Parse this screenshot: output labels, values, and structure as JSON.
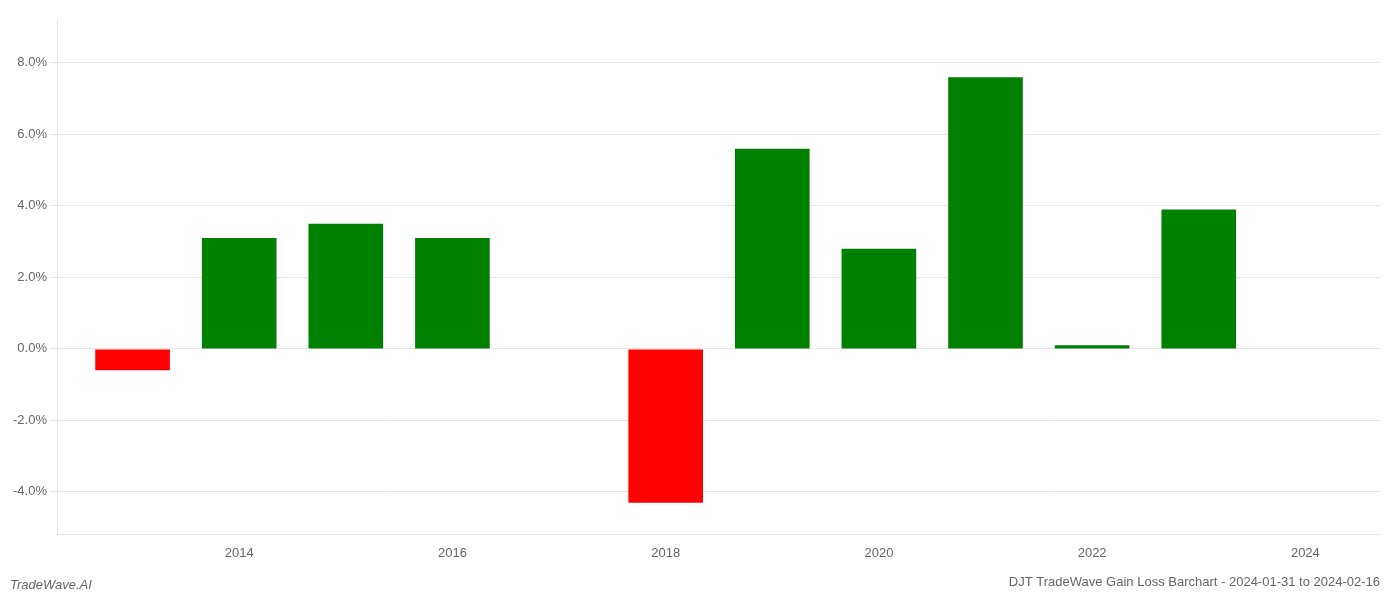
{
  "chart_data": {
    "type": "bar",
    "title": "DJT TradeWave Gain Loss Barchart - 2024-01-31 to 2024-02-16",
    "annotations": [
      "TradeWave.AI"
    ],
    "x": [
      2013,
      2014,
      2015,
      2016,
      2018,
      2019,
      2020,
      2021,
      2022,
      2023
    ],
    "values": [
      -0.006,
      0.031,
      0.035,
      0.031,
      -0.043,
      0.056,
      0.028,
      0.076,
      0.001,
      0.039
    ],
    "colors": [
      "#ff0000",
      "#008000",
      "#008000",
      "#008000",
      "#ff0000",
      "#008000",
      "#008000",
      "#008000",
      "#008000",
      "#008000"
    ],
    "xlim": [
      2012.3,
      2024.7
    ],
    "xticks": [
      2014,
      2016,
      2018,
      2020,
      2022,
      2024
    ],
    "ylim": [
      -0.052,
      0.092
    ],
    "yticks": [
      {
        "value": -0.04,
        "label": "-4.0%"
      },
      {
        "value": -0.02,
        "label": "-2.0%"
      },
      {
        "value": 0.0,
        "label": "0.0%"
      },
      {
        "value": 0.02,
        "label": "2.0%"
      },
      {
        "value": 0.04,
        "label": "4.0%"
      },
      {
        "value": 0.06,
        "label": "6.0%"
      },
      {
        "value": 0.08,
        "label": "8.0%"
      }
    ],
    "grid": "y"
  }
}
